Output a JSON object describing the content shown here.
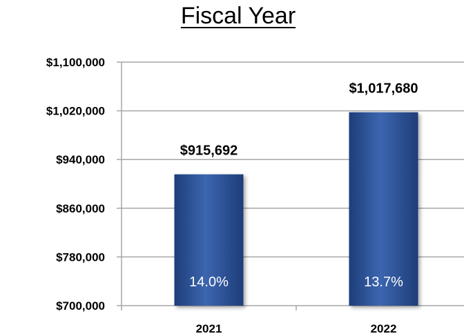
{
  "chart_data": {
    "type": "bar",
    "title": "Fiscal Year",
    "categories": [
      "2021",
      "2022"
    ],
    "values": [
      915692,
      1017680
    ],
    "value_labels": [
      "$915,692",
      "$1,017,680"
    ],
    "inner_labels": [
      "14.0%",
      "13.7%"
    ],
    "ylim": [
      700000,
      1100000
    ],
    "yticks": [
      700000,
      780000,
      860000,
      940000,
      1020000,
      1100000
    ],
    "ytick_labels": [
      "$700,000",
      "$780,000",
      "$860,000",
      "$940,000",
      "$1,020,000",
      "$1,100,000"
    ],
    "grid": true,
    "colors": {
      "bar": "#2e569d",
      "bar_light": "#3c66b0",
      "bar_dark": "#1e3d78",
      "grid": "#a6a6a6",
      "axis": "#a6a6a6"
    }
  }
}
